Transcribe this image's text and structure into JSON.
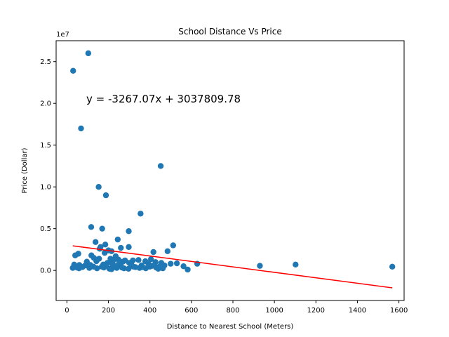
{
  "chart_data": {
    "type": "scatter",
    "title": "School Distance Vs Price",
    "xlabel": "Distance to Nearest School (Meters)",
    "ylabel": "Price (Dollar)",
    "y_offset_label": "1e7",
    "y_scale_factor": 10000000,
    "xlim": [
      -52,
      1625
    ],
    "ylim": [
      -3600000,
      27500000
    ],
    "x_ticks": [
      0,
      200,
      400,
      600,
      800,
      1000,
      1200,
      1400,
      1600
    ],
    "y_ticks": [
      0,
      5000000,
      10000000,
      15000000,
      20000000,
      25000000
    ],
    "y_tick_labels": [
      "0.0",
      "0.5",
      "1.0",
      "1.5",
      "2.0",
      "2.5"
    ],
    "grid": false,
    "colors": {
      "points": "#1f77b4",
      "regression": "#ff0000",
      "annotation": "#ff0000"
    },
    "regression": {
      "slope": -3267.07,
      "intercept": 3037809.78,
      "x_range": [
        28,
        1568
      ],
      "equation_label": "y = -3267.07x + 3037809.78"
    },
    "series": [
      {
        "points": [
          [
            103,
            26000000
          ],
          [
            30,
            23900000
          ],
          [
            68,
            17000000
          ],
          [
            452,
            12500000
          ],
          [
            153,
            10000000
          ],
          [
            188,
            9000000
          ],
          [
            355,
            6800000
          ],
          [
            117,
            5200000
          ],
          [
            170,
            5000000
          ],
          [
            298,
            4700000
          ],
          [
            245,
            3700000
          ],
          [
            138,
            3400000
          ],
          [
            185,
            3100000
          ],
          [
            512,
            3000000
          ],
          [
            162,
            2800000
          ],
          [
            298,
            2800000
          ],
          [
            260,
            2700000
          ],
          [
            158,
            2600000
          ],
          [
            200,
            2400000
          ],
          [
            485,
            2300000
          ],
          [
            215,
            2300000
          ],
          [
            417,
            2200000
          ],
          [
            55,
            2000000
          ],
          [
            40,
            1800000
          ],
          [
            182,
            2100000
          ],
          [
            118,
            1800000
          ],
          [
            235,
            1700000
          ],
          [
            130,
            1500000
          ],
          [
            155,
            1400000
          ],
          [
            210,
            1400000
          ],
          [
            248,
            1300000
          ],
          [
            280,
            1200000
          ],
          [
            318,
            1200000
          ],
          [
            345,
            1250000
          ],
          [
            405,
            1350000
          ],
          [
            225,
            1250000
          ],
          [
            270,
            1050000
          ],
          [
            378,
            1100000
          ],
          [
            427,
            1000000
          ],
          [
            96,
            1050000
          ],
          [
            142,
            1100000
          ],
          [
            195,
            900000
          ],
          [
            300,
            900000
          ],
          [
            392,
            850000
          ],
          [
            455,
            900000
          ],
          [
            500,
            800000
          ],
          [
            530,
            850000
          ],
          [
            628,
            800000
          ],
          [
            35,
            700000
          ],
          [
            60,
            650000
          ],
          [
            88,
            600000
          ],
          [
            113,
            650000
          ],
          [
            175,
            700000
          ],
          [
            223,
            650000
          ],
          [
            258,
            600000
          ],
          [
            310,
            600000
          ],
          [
            360,
            600000
          ],
          [
            410,
            550000
          ],
          [
            470,
            600000
          ],
          [
            562,
            500000
          ],
          [
            930,
            550000
          ],
          [
            1102,
            700000
          ],
          [
            1568,
            450000
          ],
          [
            28,
            300000
          ],
          [
            48,
            350000
          ],
          [
            75,
            400000
          ],
          [
            108,
            300000
          ],
          [
            145,
            250000
          ],
          [
            178,
            350000
          ],
          [
            205,
            200000
          ],
          [
            240,
            300000
          ],
          [
            275,
            250000
          ],
          [
            330,
            400000
          ],
          [
            350,
            300000
          ],
          [
            380,
            250000
          ],
          [
            430,
            350000
          ],
          [
            440,
            200000
          ],
          [
            462,
            250000
          ],
          [
            582,
            100000
          ],
          [
            58,
            250000
          ],
          [
            128,
            450000
          ],
          [
            190,
            500000
          ],
          [
            215,
            150000
          ],
          [
            232,
            450000
          ],
          [
            265,
            350000
          ],
          [
            297,
            200000
          ],
          [
            320,
            450000
          ],
          [
            365,
            400000
          ],
          [
            400,
            450000
          ],
          [
            448,
            500000
          ],
          [
            218,
            800000
          ],
          [
            252,
            900000
          ],
          [
            310,
            750000
          ],
          [
            230,
            550000
          ],
          [
            168,
            450000
          ]
        ]
      }
    ]
  }
}
